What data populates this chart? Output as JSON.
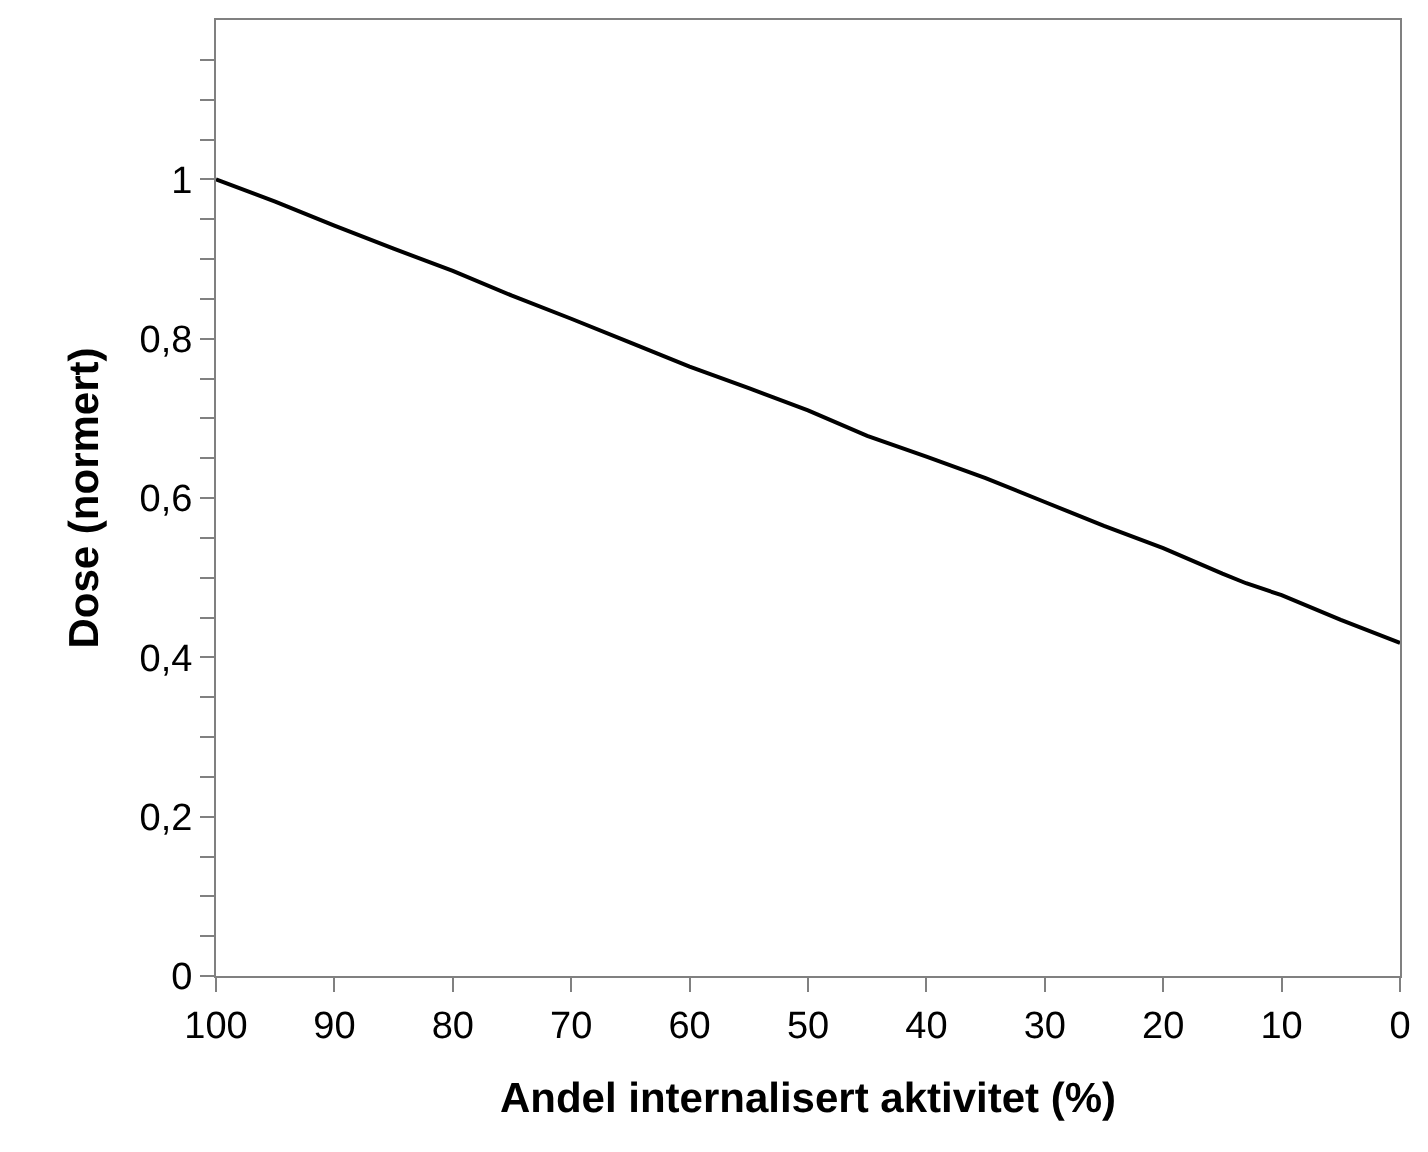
{
  "chart_data": {
    "type": "line",
    "xlabel": "Andel internalisert aktivitet (%)",
    "ylabel": "Dose (normert)",
    "x": [
      100,
      95,
      90,
      85,
      80,
      75,
      70,
      65,
      60,
      55,
      50,
      45,
      40,
      35,
      30,
      25,
      20,
      15,
      13,
      10,
      5,
      0
    ],
    "series": [
      {
        "color": "#000000",
        "values": [
          1.0,
          0.972,
          0.942,
          0.913,
          0.885,
          0.854,
          0.825,
          0.795,
          0.765,
          0.738,
          0.71,
          0.678,
          0.652,
          0.625,
          0.595,
          0.565,
          0.537,
          0.505,
          0.493,
          0.478,
          0.447,
          0.418
        ]
      }
    ],
    "xlim": [
      100,
      0
    ],
    "xticks": [
      100,
      90,
      80,
      70,
      60,
      50,
      40,
      30,
      20,
      10,
      0
    ],
    "ylim": [
      0,
      1.2
    ],
    "yticks": [
      {
        "value": 0,
        "label": "0"
      },
      {
        "value": 0.05,
        "label": null
      },
      {
        "value": 0.1,
        "label": null
      },
      {
        "value": 0.15,
        "label": null
      },
      {
        "value": 0.2,
        "label": "0,2"
      },
      {
        "value": 0.25,
        "label": null
      },
      {
        "value": 0.3,
        "label": null
      },
      {
        "value": 0.35,
        "label": null
      },
      {
        "value": 0.4,
        "label": "0,4"
      },
      {
        "value": 0.45,
        "label": null
      },
      {
        "value": 0.5,
        "label": null
      },
      {
        "value": 0.55,
        "label": null
      },
      {
        "value": 0.6,
        "label": "0,6"
      },
      {
        "value": 0.65,
        "label": null
      },
      {
        "value": 0.7,
        "label": null
      },
      {
        "value": 0.75,
        "label": null
      },
      {
        "value": 0.8,
        "label": "0,8"
      },
      {
        "value": 0.85,
        "label": null
      },
      {
        "value": 0.9,
        "label": null
      },
      {
        "value": 0.95,
        "label": null
      },
      {
        "value": 1,
        "label": "1"
      },
      {
        "value": 1.05,
        "label": null
      },
      {
        "value": 1.1,
        "label": null
      },
      {
        "value": 1.15,
        "label": null
      }
    ],
    "grid": false,
    "legend": false,
    "marker": "none",
    "line_style": "solid"
  }
}
